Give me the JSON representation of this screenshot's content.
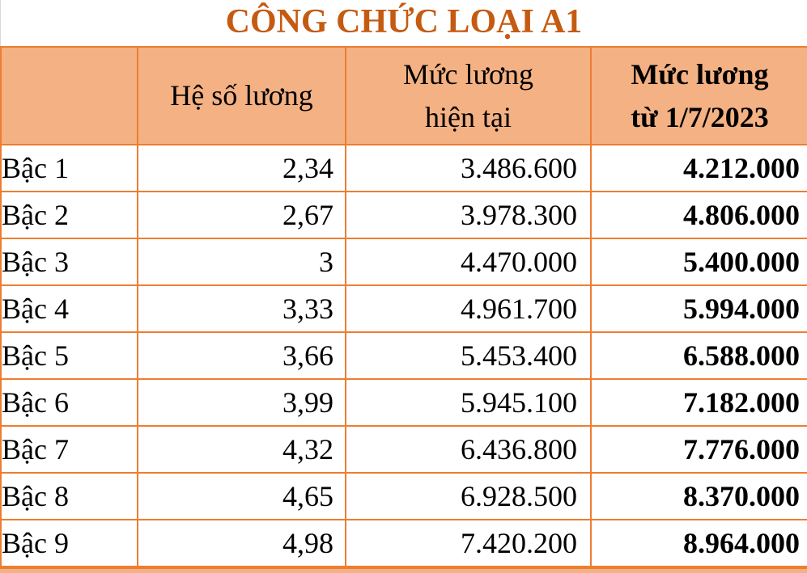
{
  "title": "CÔNG CHỨC LOẠI A1",
  "colors": {
    "header_fill": "#F4B183",
    "border": "#ED7D31",
    "title_text": "#C55A11",
    "body_text": "#000000"
  },
  "table": {
    "headers": {
      "col1": "",
      "col2": "Hệ số lương",
      "col3_line1": "Mức lương",
      "col3_line2": "hiện tại",
      "col4_line1": "Mức lương",
      "col4_line2": "từ 1/7/2023"
    },
    "rows": [
      {
        "label": "Bậc 1",
        "he_so_luong": "2,34",
        "muc_luong_hien_tai": "3.486.600",
        "muc_luong_tu_1_7_2023": "4.212.000"
      },
      {
        "label": "Bậc 2",
        "he_so_luong": "2,67",
        "muc_luong_hien_tai": "3.978.300",
        "muc_luong_tu_1_7_2023": "4.806.000"
      },
      {
        "label": "Bậc 3",
        "he_so_luong": "3",
        "muc_luong_hien_tai": "4.470.000",
        "muc_luong_tu_1_7_2023": "5.400.000"
      },
      {
        "label": "Bậc 4",
        "he_so_luong": "3,33",
        "muc_luong_hien_tai": "4.961.700",
        "muc_luong_tu_1_7_2023": "5.994.000"
      },
      {
        "label": "Bậc 5",
        "he_so_luong": "3,66",
        "muc_luong_hien_tai": "5.453.400",
        "muc_luong_tu_1_7_2023": "6.588.000"
      },
      {
        "label": "Bậc 6",
        "he_so_luong": "3,99",
        "muc_luong_hien_tai": "5.945.100",
        "muc_luong_tu_1_7_2023": "7.182.000"
      },
      {
        "label": "Bậc 7",
        "he_so_luong": "4,32",
        "muc_luong_hien_tai": "6.436.800",
        "muc_luong_tu_1_7_2023": "7.776.000"
      },
      {
        "label": "Bậc 8",
        "he_so_luong": "4,65",
        "muc_luong_hien_tai": "6.928.500",
        "muc_luong_tu_1_7_2023": "8.370.000"
      },
      {
        "label": "Bậc 9",
        "he_so_luong": "4,98",
        "muc_luong_hien_tai": "7.420.200",
        "muc_luong_tu_1_7_2023": "8.964.000"
      }
    ]
  }
}
